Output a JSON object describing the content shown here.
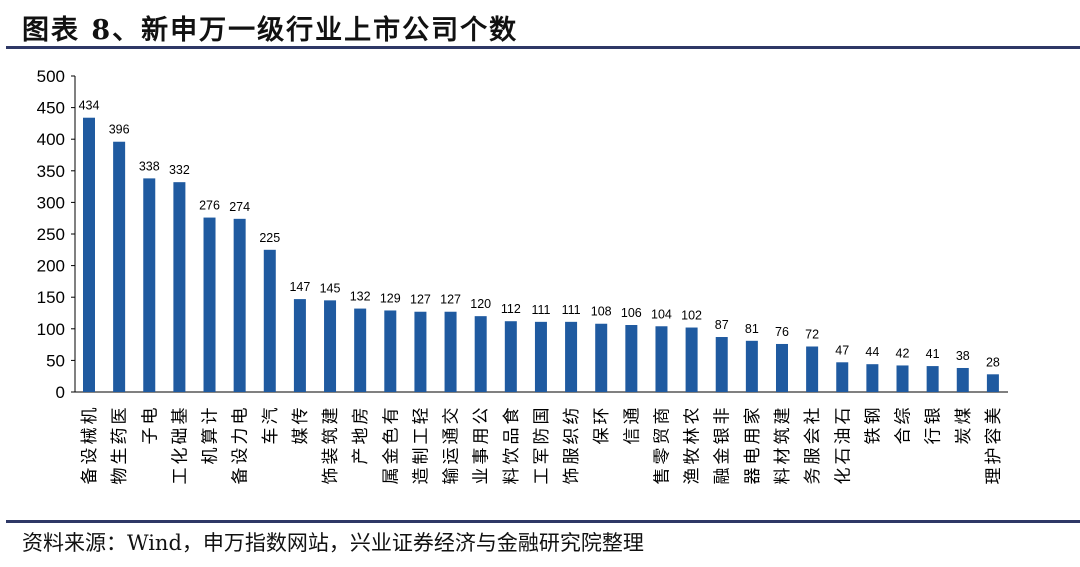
{
  "title": "图表 8、新申万一级行业上市公司个数",
  "source": "资料来源：Wind，申万指数网站，兴业证券经济与金融研究院整理",
  "chart_data": {
    "type": "bar",
    "title": "",
    "xlabel": "",
    "ylabel": "",
    "ylim": [
      0,
      500
    ],
    "yticks": [
      0,
      50,
      100,
      150,
      200,
      250,
      300,
      350,
      400,
      450,
      500
    ],
    "grid": false,
    "bar_color": "#1f5aa0",
    "categories": [
      "机械设备",
      "医药生物",
      "电子",
      "基础化工",
      "计算机",
      "电力设备",
      "汽车",
      "传媒",
      "建筑装饰",
      "房地产",
      "有色金属",
      "轻工制造",
      "交通运输",
      "公用事业",
      "食品饮料",
      "国防军工",
      "纺织服饰",
      "环保",
      "通信",
      "商贸零售",
      "农林牧渔",
      "非银金融",
      "家用电器",
      "建筑材料",
      "社会服务",
      "石油石化",
      "钢铁",
      "综合",
      "银行",
      "煤炭",
      "美容护理"
    ],
    "values": [
      434,
      396,
      338,
      332,
      276,
      274,
      225,
      147,
      145,
      132,
      129,
      127,
      127,
      120,
      112,
      111,
      111,
      108,
      106,
      104,
      102,
      87,
      81,
      76,
      72,
      47,
      44,
      42,
      41,
      38,
      28
    ]
  }
}
